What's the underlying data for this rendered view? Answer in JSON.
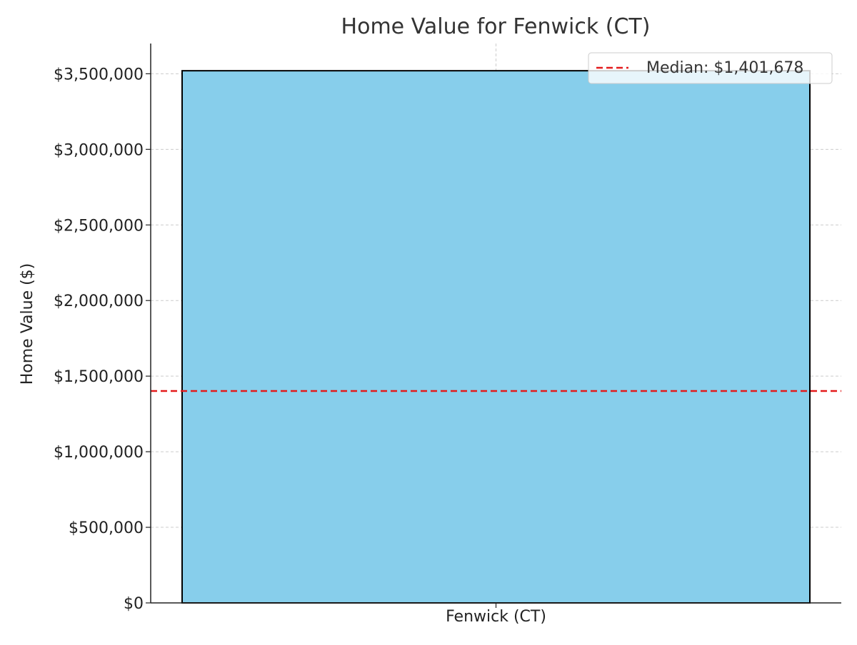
{
  "chart_data": {
    "type": "bar",
    "title": "Home Value for Fenwick (CT)",
    "xlabel": "",
    "ylabel": "Home Value ($)",
    "categories": [
      "Fenwick (CT)"
    ],
    "values": [
      3520000
    ],
    "ylim": [
      0,
      3700000
    ],
    "yticks": [
      0,
      500000,
      1000000,
      1500000,
      2000000,
      2500000,
      3000000,
      3500000
    ],
    "ytick_labels": [
      "$0",
      "$500,000",
      "$1,000,000",
      "$1,500,000",
      "$2,000,000",
      "$2,500,000",
      "$3,000,000",
      "$3,500,000"
    ],
    "reference_lines": [
      {
        "label": "Median: $1,401,678",
        "value": 1401678,
        "style": "dashed",
        "color": "#e31a1c"
      }
    ],
    "grid": true,
    "legend_position": "top-right",
    "colors": {
      "bar_fill": "#87ceeb",
      "bar_edge": "#000000",
      "grid": "#cccccc",
      "text": "#333333"
    }
  }
}
